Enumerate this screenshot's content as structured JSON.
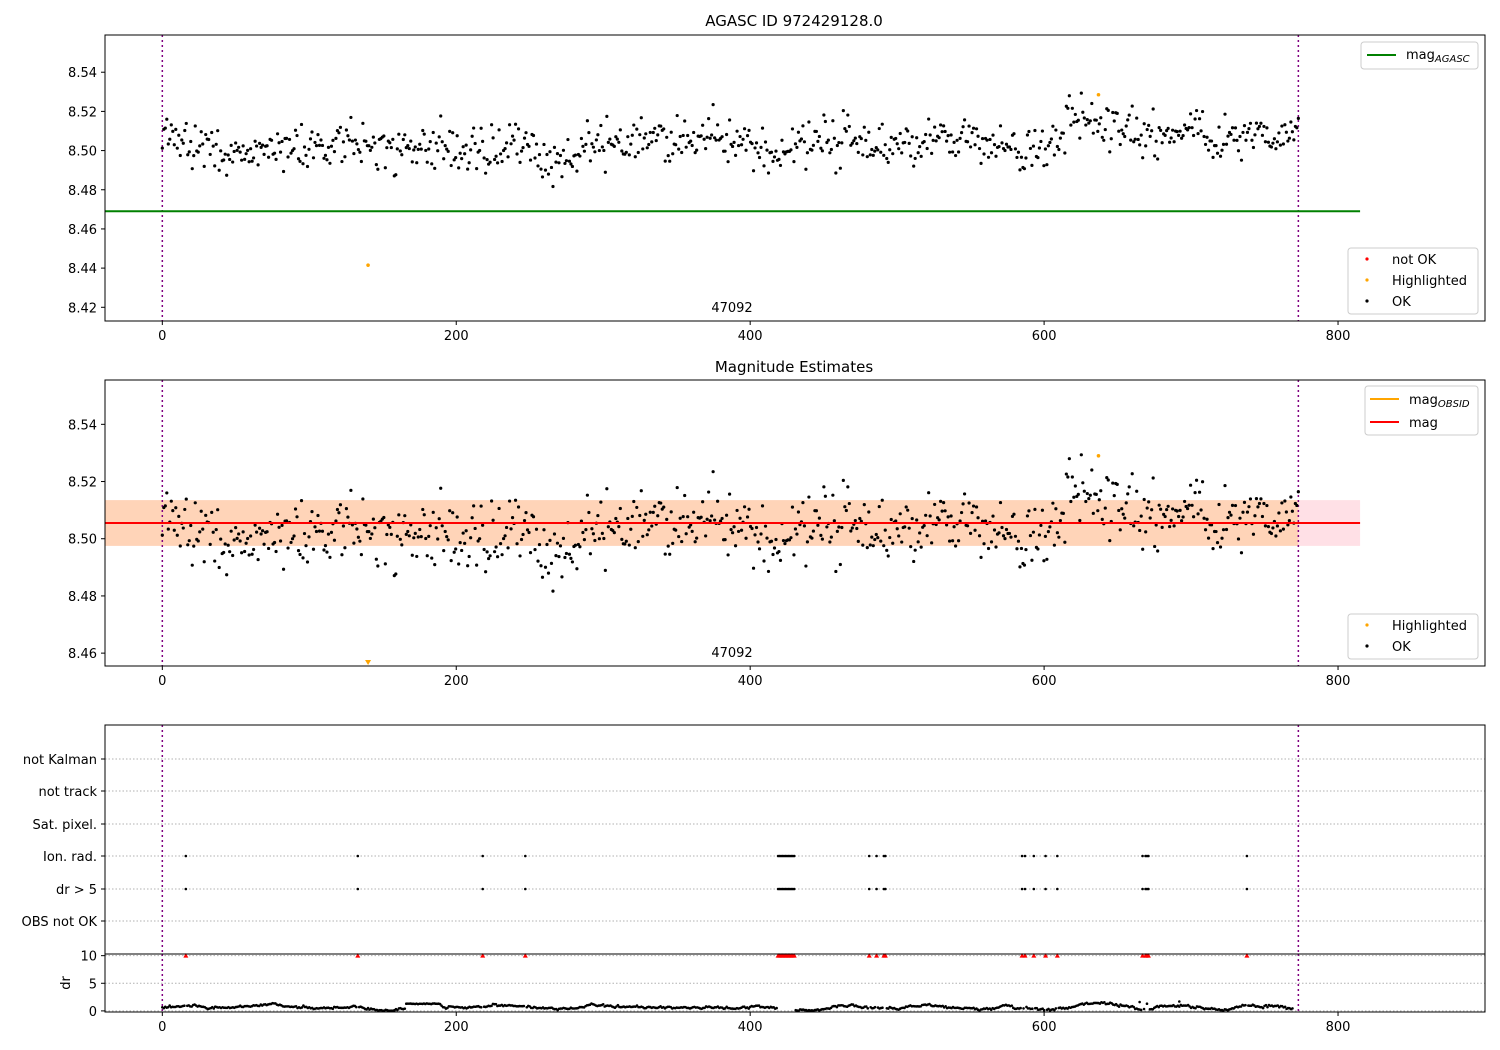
{
  "chart_data": [
    {
      "type": "scatter",
      "title": "AGASC ID 972429128.0",
      "xlabel": "",
      "ylabel": "",
      "xlim": [
        -39,
        900
      ],
      "ylim": [
        8.413,
        8.559
      ],
      "x_ticks": [
        "0",
        "200",
        "400",
        "600",
        "800"
      ],
      "y_ticks": [
        "8.42",
        "8.44",
        "8.46",
        "8.48",
        "8.50",
        "8.52",
        "8.54"
      ],
      "annotation": "47092",
      "obs_boundaries": [
        0,
        773
      ],
      "lines": [
        {
          "name": "mag_AGASC",
          "y": 8.469,
          "x_range": [
            -39,
            815
          ],
          "color": "#008000"
        }
      ],
      "series": [
        {
          "name": "not OK",
          "color": "#ff0000",
          "points": []
        },
        {
          "name": "Highlighted",
          "color": "#ffa500",
          "points": [
            [
              140,
              8.4415
            ],
            [
              637,
              8.5285
            ]
          ]
        },
        {
          "name": "OK",
          "color": "#000000",
          "trend_base": 8.5035,
          "trend_scatter": 0.0075,
          "x_range": [
            0,
            773
          ],
          "n_points": 760
        }
      ],
      "legend_lines": {
        "entries": [
          "mag_AGASC"
        ],
        "position": "upper right"
      },
      "legend_points": {
        "entries": [
          "not OK",
          "Highlighted",
          "OK"
        ],
        "position": "lower right"
      }
    },
    {
      "type": "scatter",
      "title": "Magnitude Estimates",
      "xlabel": "",
      "ylabel": "",
      "xlim": [
        -39,
        900
      ],
      "ylim": [
        8.4555,
        8.5555
      ],
      "x_ticks": [
        "0",
        "200",
        "400",
        "600",
        "800"
      ],
      "y_ticks": [
        "8.46",
        "8.48",
        "8.50",
        "8.52",
        "8.54"
      ],
      "annotation": "47092",
      "obs_boundaries": [
        0,
        773
      ],
      "lines": [
        {
          "name": "mag_OBSID",
          "y": 8.5055,
          "x_range": [
            -39,
            773
          ],
          "color": "#ffa500",
          "band": [
            8.4975,
            8.5135
          ]
        },
        {
          "name": "mag",
          "y": 8.5055,
          "x_range": [
            -39,
            815
          ],
          "color": "#ff0000",
          "band": [
            8.4975,
            8.5135
          ]
        }
      ],
      "series": [
        {
          "name": "Highlighted",
          "color": "#ffa500",
          "points": [
            [
              637,
              8.529
            ]
          ],
          "off_scale_marker_x": 140
        },
        {
          "name": "OK",
          "color": "#000000",
          "trend_base": 8.5035,
          "trend_scatter": 0.0075,
          "x_range": [
            0,
            773
          ],
          "n_points": 760
        }
      ],
      "legend_lines": {
        "entries": [
          "mag_OBSID",
          "mag"
        ],
        "position": "upper right"
      },
      "legend_points": {
        "entries": [
          "Highlighted",
          "OK"
        ],
        "position": "lower right"
      }
    },
    {
      "type": "scatter",
      "title": "",
      "xlabel": "",
      "ylabel": "",
      "xlim": [
        -39,
        900
      ],
      "categories": [
        "OBS not OK",
        "dr > 5",
        "Ion. rad.",
        "Sat. pixel.",
        "not track",
        "not Kalman"
      ],
      "obs_boundaries": [
        0,
        773
      ],
      "flag_x": [
        16,
        133,
        218,
        247,
        419,
        420,
        421,
        422,
        423,
        424,
        425,
        426,
        427,
        428,
        429,
        430,
        481,
        486,
        491,
        492,
        585,
        587,
        593,
        601,
        609,
        667,
        669,
        670,
        671,
        738
      ],
      "flag_rows": [
        "dr > 5",
        "Ion. rad."
      ]
    },
    {
      "type": "scatter",
      "title": "",
      "xlabel": "",
      "ylabel": "dr",
      "xlim": [
        -39,
        900
      ],
      "ylim": [
        -0.2,
        10.3
      ],
      "x_ticks": [
        "0",
        "200",
        "400",
        "600",
        "800"
      ],
      "y_ticks": [
        "0",
        "5",
        "10"
      ],
      "obs_boundaries": [
        0,
        773
      ],
      "clipped_marker_y": 10,
      "clipped_x": [
        16,
        133,
        218,
        247,
        419,
        420,
        421,
        422,
        423,
        424,
        425,
        426,
        427,
        428,
        429,
        430,
        481,
        486,
        491,
        492,
        585,
        587,
        593,
        601,
        609,
        667,
        669,
        670,
        671,
        738
      ],
      "dr_base": 0.7,
      "dr_scatter": 0.35,
      "dr_extra": [
        [
          665,
          1.6
        ],
        [
          670,
          1.3
        ],
        [
          692,
          1.7
        ]
      ]
    }
  ],
  "legends": {
    "top_lines": [
      {
        "label": "mag",
        "sub": "AGASC",
        "color": "#008000"
      }
    ],
    "top_points": [
      {
        "label": "not OK",
        "color": "#ff0000"
      },
      {
        "label": "Highlighted",
        "color": "#ffa500"
      },
      {
        "label": "OK",
        "color": "#000000"
      }
    ],
    "mid_lines": [
      {
        "label": "mag",
        "sub": "OBSID",
        "color": "#ffa500"
      },
      {
        "label": "mag",
        "sub": "",
        "color": "#ff0000"
      }
    ],
    "mid_points": [
      {
        "label": "Highlighted",
        "color": "#ffa500"
      },
      {
        "label": "OK",
        "color": "#000000"
      }
    ]
  }
}
